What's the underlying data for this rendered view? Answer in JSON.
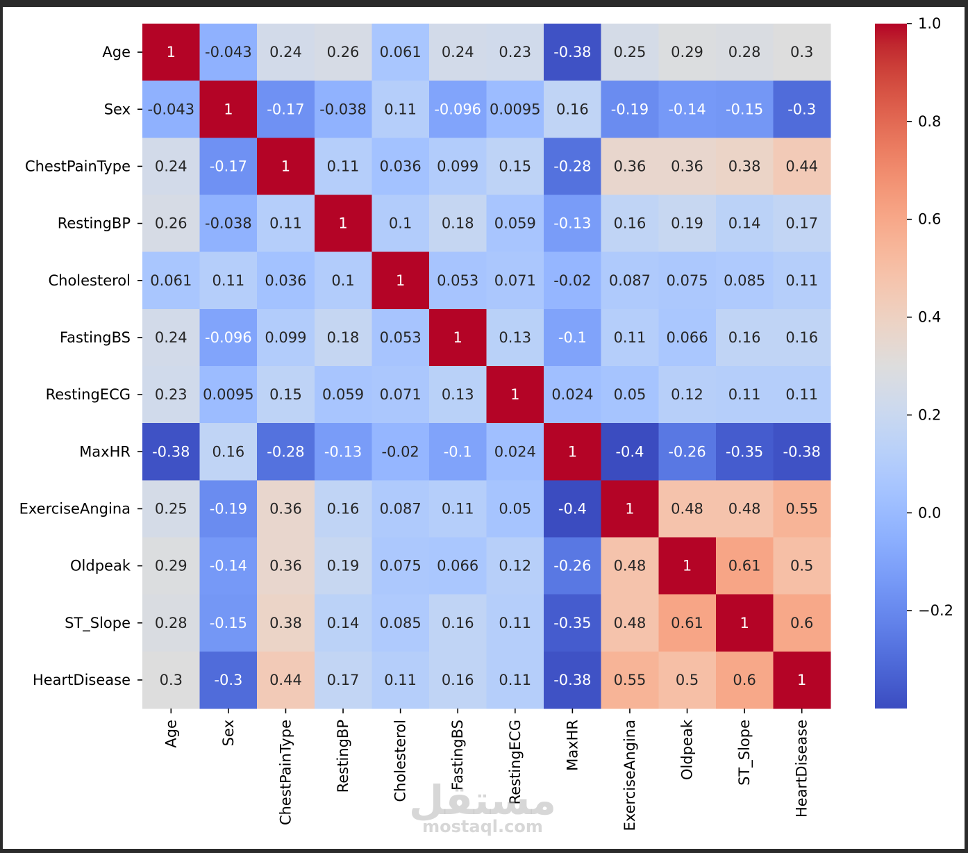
{
  "chart_data": {
    "type": "heatmap",
    "x_labels": [
      "Age",
      "Sex",
      "ChestPainType",
      "RestingBP",
      "Cholesterol",
      "FastingBS",
      "RestingECG",
      "MaxHR",
      "ExerciseAngina",
      "Oldpeak",
      "ST_Slope",
      "HeartDisease"
    ],
    "y_labels": [
      "Age",
      "Sex",
      "ChestPainType",
      "RestingBP",
      "Cholesterol",
      "FastingBS",
      "RestingECG",
      "MaxHR",
      "ExerciseAngina",
      "Oldpeak",
      "ST_Slope",
      "HeartDisease"
    ],
    "values": [
      [
        1,
        -0.043,
        0.24,
        0.26,
        0.061,
        0.24,
        0.23,
        -0.38,
        0.25,
        0.29,
        0.28,
        0.3
      ],
      [
        -0.043,
        1,
        -0.17,
        -0.038,
        0.11,
        -0.096,
        0.0095,
        0.16,
        -0.19,
        -0.14,
        -0.15,
        -0.3
      ],
      [
        0.24,
        -0.17,
        1,
        0.11,
        0.036,
        0.099,
        0.15,
        -0.28,
        0.36,
        0.36,
        0.38,
        0.44
      ],
      [
        0.26,
        -0.038,
        0.11,
        1,
        0.1,
        0.18,
        0.059,
        -0.13,
        0.16,
        0.19,
        0.14,
        0.17
      ],
      [
        0.061,
        0.11,
        0.036,
        0.1,
        1,
        0.053,
        0.071,
        -0.02,
        0.087,
        0.075,
        0.085,
        0.11
      ],
      [
        0.24,
        -0.096,
        0.099,
        0.18,
        0.053,
        1,
        0.13,
        -0.1,
        0.11,
        0.066,
        0.16,
        0.16
      ],
      [
        0.23,
        0.0095,
        0.15,
        0.059,
        0.071,
        0.13,
        1,
        0.024,
        0.05,
        0.12,
        0.11,
        0.11
      ],
      [
        -0.38,
        0.16,
        -0.28,
        -0.13,
        -0.02,
        -0.1,
        0.024,
        1,
        -0.4,
        -0.26,
        -0.35,
        -0.38
      ],
      [
        0.25,
        -0.19,
        0.36,
        0.16,
        0.087,
        0.11,
        0.05,
        -0.4,
        1,
        0.48,
        0.48,
        0.55
      ],
      [
        0.29,
        -0.14,
        0.36,
        0.19,
        0.075,
        0.066,
        0.12,
        -0.26,
        0.48,
        1,
        0.61,
        0.5
      ],
      [
        0.28,
        -0.15,
        0.38,
        0.14,
        0.085,
        0.16,
        0.11,
        -0.35,
        0.48,
        0.61,
        1,
        0.6
      ],
      [
        0.3,
        -0.3,
        0.44,
        0.17,
        0.11,
        0.16,
        0.11,
        -0.38,
        0.55,
        0.5,
        0.6,
        1
      ]
    ],
    "colorbar_range": [
      -0.4,
      1.0
    ],
    "colorbar_ticks": [
      1.0,
      0.8,
      0.6,
      0.4,
      0.2,
      0.0,
      -0.2
    ],
    "colorbar_tick_labels": [
      "1.0",
      "0.8",
      "0.6",
      "0.4",
      "0.2",
      "0.0",
      "−0.2"
    ],
    "colorbar_position": "right",
    "annotated": true,
    "grid": false
  },
  "watermark": {
    "logo_text": "مستقل",
    "site_text": "mostaql.com"
  },
  "colors": {
    "frame": "#2b2b2b",
    "canvas": "#ffffff",
    "annotation_dark": "#262626",
    "annotation_light": "#ffffff",
    "tick": "#000000",
    "label": "#000000",
    "watermark": "#bdbdbd"
  }
}
